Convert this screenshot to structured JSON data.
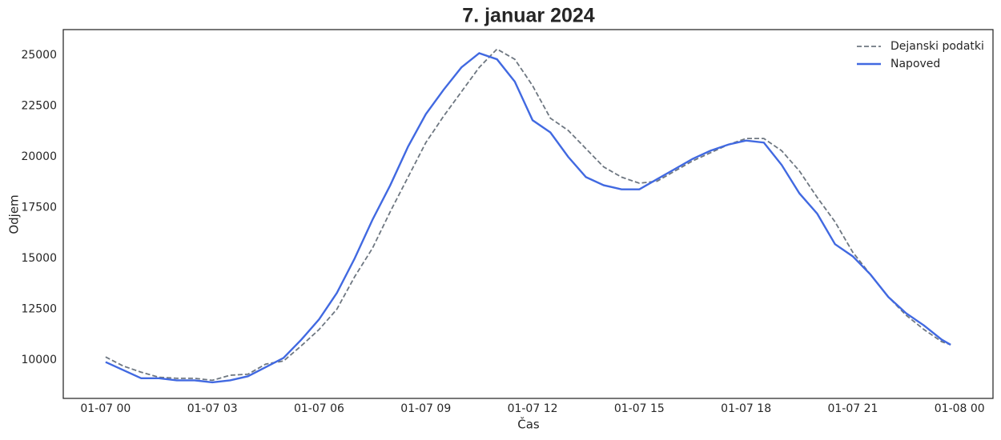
{
  "chart_data": {
    "type": "line",
    "title": "7. januar 2024",
    "xlabel": "Čas",
    "ylabel": "Odjem",
    "x": [
      0,
      0.5,
      1,
      1.5,
      2,
      2.5,
      3,
      3.5,
      4,
      4.5,
      5,
      5.5,
      6,
      6.5,
      7,
      7.5,
      8,
      8.5,
      9,
      9.5,
      10,
      10.5,
      11,
      11.5,
      12,
      12.5,
      13,
      13.5,
      14,
      14.5,
      15,
      15.5,
      16,
      16.5,
      17,
      17.5,
      18,
      18.5,
      19,
      19.5,
      20,
      20.5,
      21,
      21.5,
      22,
      22.5,
      23,
      23.5,
      23.75
    ],
    "series": [
      {
        "name": "Dejanski podatki",
        "color": "#6e7781",
        "style": "dashed",
        "values": [
          10150,
          9700,
          9400,
          9150,
          9100,
          9100,
          9000,
          9250,
          9300,
          9800,
          9950,
          10700,
          11500,
          12500,
          14100,
          15500,
          17300,
          19000,
          20700,
          22000,
          23200,
          24400,
          25300,
          24800,
          23500,
          21900,
          21300,
          20400,
          19500,
          19000,
          18700,
          18800,
          19300,
          19800,
          20200,
          20600,
          20900,
          20900,
          20300,
          19300,
          18000,
          16800,
          15300,
          14200,
          13100,
          12200,
          11500,
          10900,
          10750
        ]
      },
      {
        "name": "Napoved",
        "color": "#4169e1",
        "style": "solid",
        "values": [
          9900,
          9500,
          9100,
          9100,
          9000,
          9000,
          8900,
          9000,
          9200,
          9650,
          10100,
          11000,
          12000,
          13300,
          15000,
          16900,
          18600,
          20500,
          22100,
          23300,
          24400,
          25100,
          24800,
          23700,
          21800,
          21200,
          20000,
          19000,
          18600,
          18400,
          18400,
          18900,
          19400,
          19900,
          20300,
          20600,
          20800,
          20700,
          19600,
          18200,
          17200,
          15700,
          15100,
          14200,
          13100,
          12300,
          11700,
          11000,
          10750
        ]
      }
    ],
    "xlim": [
      -1.19,
      24.94
    ],
    "xticks": [
      {
        "value": 0,
        "label": "01-07 00"
      },
      {
        "value": 3,
        "label": "01-07 03"
      },
      {
        "value": 6,
        "label": "01-07 06"
      },
      {
        "value": 9,
        "label": "01-07 09"
      },
      {
        "value": 12,
        "label": "01-07 12"
      },
      {
        "value": 15,
        "label": "01-07 15"
      },
      {
        "value": 18,
        "label": "01-07 18"
      },
      {
        "value": 21,
        "label": "01-07 21"
      },
      {
        "value": 24,
        "label": "01-08 00"
      }
    ],
    "ylim": [
      8110,
      26260
    ],
    "yticks": [
      10000,
      12500,
      15000,
      17500,
      20000,
      22500,
      25000
    ],
    "grid": false,
    "legend": "upper right"
  }
}
